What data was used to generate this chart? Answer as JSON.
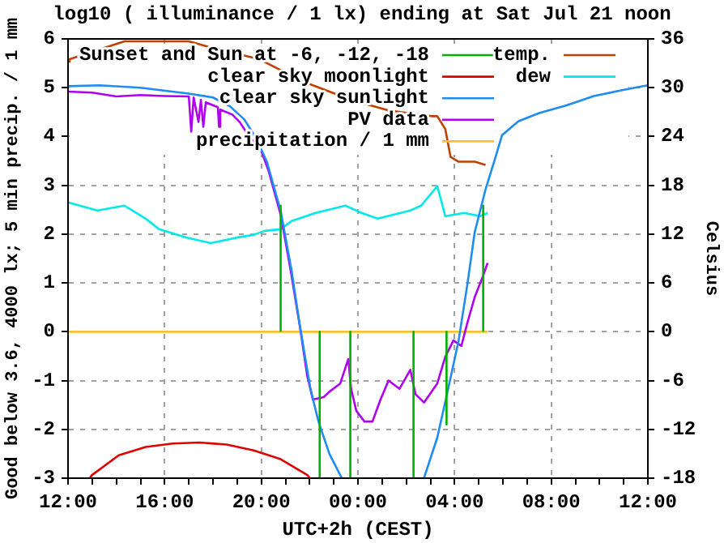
{
  "chart_data": {
    "type": "line",
    "title": "log10 ( illuminance / 1 lx) ending at Sat Jul 21 noon",
    "xlabel": "UTC+2h (CEST)",
    "ylabel": "Good below 3.6, 4000 lx; 5 min precip. / 1 mm",
    "y2label": "Celsius",
    "xlim": [
      "--07-20T12:00",
      "--07-21T12:00"
    ],
    "xticks": [
      {
        "value": "--07-20T12:00",
        "label": "12:00"
      },
      {
        "value": "--07-20T13:00",
        "label": null
      },
      {
        "value": "--07-20T14:00",
        "label": null
      },
      {
        "value": "--07-20T15:00",
        "label": null
      },
      {
        "value": "--07-20T16:00",
        "label": "16:00"
      },
      {
        "value": "--07-20T17:00",
        "label": null
      },
      {
        "value": "--07-20T18:00",
        "label": null
      },
      {
        "value": "--07-20T19:00",
        "label": null
      },
      {
        "value": "--07-20T20:00",
        "label": "20:00"
      },
      {
        "value": "--07-20T21:00",
        "label": null
      },
      {
        "value": "--07-20T22:00",
        "label": null
      },
      {
        "value": "--07-20T23:00",
        "label": null
      },
      {
        "value": "--07-21T00:00",
        "label": "00:00"
      },
      {
        "value": "--07-21T01:00",
        "label": null
      },
      {
        "value": "--07-21T02:00",
        "label": null
      },
      {
        "value": "--07-21T03:00",
        "label": null
      },
      {
        "value": "--07-21T04:00",
        "label": "04:00"
      },
      {
        "value": "--07-21T05:00",
        "label": null
      },
      {
        "value": "--07-21T06:00",
        "label": null
      },
      {
        "value": "--07-21T07:00",
        "label": null
      },
      {
        "value": "--07-21T08:00",
        "label": "08:00"
      },
      {
        "value": "--07-21T09:00",
        "label": null
      },
      {
        "value": "--07-21T10:00",
        "label": null
      },
      {
        "value": "--07-21T11:00",
        "label": null
      },
      {
        "value": "--07-21T12:00",
        "label": "12:00"
      }
    ],
    "ylim": [
      -3,
      6
    ],
    "yticks": [
      -3,
      -2,
      -1,
      0,
      1,
      2,
      3,
      4,
      5,
      6
    ],
    "y2lim": [
      -18,
      36
    ],
    "y2ticks": [
      -18,
      -12,
      -6,
      0,
      6,
      12,
      18,
      24,
      30,
      36
    ],
    "grid": true,
    "legend": "top",
    "marker": "none",
    "line_style": "solid",
    "series": [
      {
        "name": "Sunset and Sun at -6, -12, -18",
        "color": "#00b000",
        "x": [
          "--07-20T20:48",
          "--07-20T20:48"
        ],
        "values": [
          0,
          2.6
        ]
      },
      {
        "color": "#00b000",
        "x": [
          "--07-20T22:25",
          "--07-20T22:25"
        ],
        "values": [
          0,
          -3
        ]
      },
      {
        "color": "#00b000",
        "x": [
          "--07-20T23:41",
          "--07-20T23:41"
        ],
        "values": [
          0,
          -3
        ]
      },
      {
        "color": "#00b000",
        "x": [
          "--07-21T02:18",
          "--07-21T02:18"
        ],
        "values": [
          0,
          -3
        ]
      },
      {
        "color": "#00b000",
        "x": [
          "--07-21T03:40",
          "--07-21T03:40"
        ],
        "values": [
          0,
          -1.9
        ]
      },
      {
        "color": "#00b000",
        "x": [
          "--07-21T05:11",
          "--07-21T05:11"
        ],
        "values": [
          0,
          2.6
        ]
      },
      {
        "name": "clear sky moonlight",
        "color": "#e00000",
        "x": [
          "--07-20T12:54",
          "--07-20T12:59",
          "--07-20T14:06",
          "--07-20T15:13",
          "--07-20T16:20",
          "--07-20T17:27",
          "--07-20T18:34",
          "--07-20T19:41",
          "--07-20T20:48",
          "--07-20T21:55",
          "--07-20T22:00"
        ],
        "values": [
          -3,
          -2.94,
          -2.53,
          -2.36,
          -2.29,
          -2.27,
          -2.31,
          -2.43,
          -2.61,
          -2.94,
          -3
        ]
      },
      {
        "name": "clear sky sunlight",
        "color": "#1e8cf0",
        "x": [
          "--07-20T12:00",
          "--07-20T13:18",
          "--07-20T15:00",
          "--07-20T17:00",
          "--07-20T18:00",
          "--07-20T18:42",
          "--07-20T19:18",
          "--07-20T19:48",
          "--07-20T20:14",
          "--07-20T20:48",
          "--07-20T21:15",
          "--07-20T21:35",
          "--07-20T22:02",
          "--07-20T22:22",
          "--07-20T22:49",
          "--07-20T23:20",
          "--07-21T01:00",
          "--07-21T02:44",
          "--07-21T03:17",
          "--07-21T03:44",
          "--07-21T04:10",
          "--07-21T04:31",
          "--07-21T04:50",
          "--07-21T05:17",
          "--07-21T05:38",
          "--07-21T05:58",
          "--07-21T06:38",
          "--07-21T07:30",
          "--07-21T08:38",
          "--07-21T09:46",
          "--07-21T10:51",
          "--07-21T11:46",
          "--07-21T12:00"
        ],
        "values": [
          5.03,
          5.05,
          5.0,
          4.88,
          4.8,
          4.62,
          4.35,
          3.95,
          3.48,
          2.48,
          1.26,
          0.16,
          -1.17,
          -1.84,
          -2.5,
          -3,
          null,
          -3,
          -2.17,
          -1.17,
          -0.18,
          0.93,
          2.04,
          2.92,
          3.48,
          4.03,
          4.31,
          4.48,
          4.64,
          4.83,
          4.94,
          5.03,
          5.05
        ]
      },
      {
        "name": "PV data",
        "color": "#b000f0",
        "x": [
          "--07-20T12:00",
          "--07-20T13:00",
          "--07-20T14:00",
          "--07-20T15:00",
          "--07-20T16:00",
          "--07-20T17:00",
          "--07-20T17:06",
          "--07-20T17:12",
          "--07-20T17:24",
          "--07-20T17:30",
          "--07-20T17:36",
          "--07-20T17:42",
          "--07-20T18:12",
          "--07-20T18:15",
          "--07-20T18:18",
          "--07-20T18:48",
          "--07-20T19:06",
          "--07-20T19:30",
          "--07-20T20:00",
          "--07-20T20:18",
          "--07-20T20:48",
          "--07-20T21:12",
          "--07-20T21:36",
          "--07-20T21:54",
          "--07-20T22:08",
          "--07-20T22:35",
          "--07-20T22:49",
          "--07-20T23:16",
          "--07-20T23:36",
          "--07-20T23:43",
          "--07-20T23:56",
          "--07-21T00:16",
          "--07-21T00:36",
          "--07-21T00:56",
          "--07-21T01:16",
          "--07-21T01:43",
          "--07-21T02:10",
          "--07-21T02:23",
          "--07-21T02:44",
          "--07-21T03:17",
          "--07-21T03:37",
          "--07-21T03:57",
          "--07-21T04:17",
          "--07-21T04:31",
          "--07-21T04:50",
          "--07-21T05:11",
          "--07-21T05:22"
        ],
        "values": [
          4.92,
          4.9,
          4.82,
          4.85,
          4.83,
          4.82,
          4.1,
          4.8,
          4.3,
          4.75,
          4.2,
          4.7,
          4.6,
          4.2,
          4.55,
          4.45,
          4.3,
          4.0,
          3.7,
          3.3,
          2.4,
          1.3,
          0.1,
          -0.9,
          -1.39,
          -1.34,
          -1.23,
          -1.06,
          -0.56,
          -1.17,
          -1.62,
          -1.84,
          -1.84,
          -1.39,
          -1.0,
          -1.17,
          -0.78,
          -1.28,
          -1.45,
          -1.06,
          -0.51,
          -0.18,
          -0.29,
          0.16,
          0.71,
          1.15,
          1.41
        ]
      },
      {
        "name": "precipitation / 1 mm",
        "color": "#ffc030",
        "x": [
          "--07-20T12:00",
          "--07-21T05:22"
        ],
        "values": [
          0,
          0
        ]
      },
      {
        "name": "temp.",
        "color": "#c04000",
        "axis": "y2",
        "x": [
          "--07-20T12:00",
          "--07-20T12:04",
          "--07-20T14:20",
          "--07-20T17:00",
          "--07-20T18:06",
          "--07-20T19:55",
          "--07-20T21:42",
          "--07-20T23:43",
          "--07-21T01:16",
          "--07-21T03:04",
          "--07-21T03:17",
          "--07-21T03:37",
          "--07-21T03:50",
          "--07-21T04:10",
          "--07-21T04:50",
          "--07-21T05:17"
        ],
        "values": [
          33.2,
          33.5,
          35.7,
          35.7,
          34.8,
          33.5,
          30.8,
          28.5,
          27.2,
          26.5,
          26.5,
          24.9,
          21.5,
          20.9,
          20.9,
          20.5
        ]
      },
      {
        "name": "dew",
        "color": "#00e8e8",
        "axis": "y2",
        "x": [
          "--07-20T12:00",
          "--07-20T13:13",
          "--07-20T14:20",
          "--07-20T15:13",
          "--07-20T15:46",
          "--07-20T16:53",
          "--07-20T17:54",
          "--07-20T19:01",
          "--07-20T19:41",
          "--07-20T20:08",
          "--07-20T20:48",
          "--07-20T21:15",
          "--07-20T22:15",
          "--07-20T23:29",
          "--07-21T00:09",
          "--07-21T00:49",
          "--07-21T02:10",
          "--07-21T02:37",
          "--07-21T03:17",
          "--07-21T03:37",
          "--07-21T04:24",
          "--07-21T05:04",
          "--07-21T05:22"
        ],
        "values": [
          15.9,
          14.9,
          15.5,
          13.9,
          12.6,
          11.6,
          10.9,
          11.6,
          11.9,
          12.4,
          12.6,
          13.6,
          14.6,
          15.5,
          14.6,
          13.9,
          14.9,
          15.5,
          17.9,
          14.2,
          14.6,
          14.2,
          14.6
        ]
      }
    ]
  }
}
